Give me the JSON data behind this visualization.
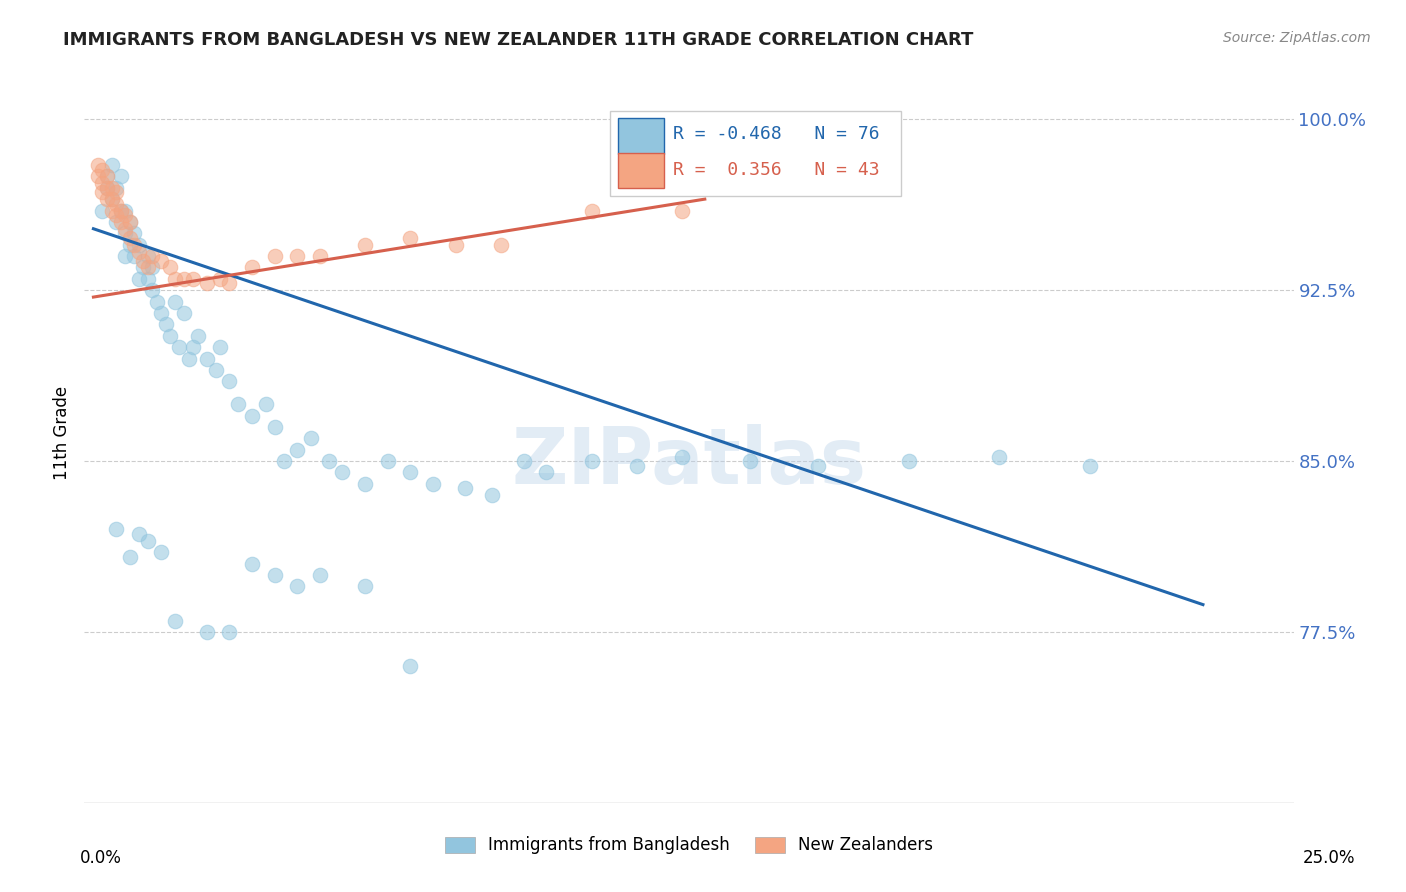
{
  "title": "IMMIGRANTS FROM BANGLADESH VS NEW ZEALANDER 11TH GRADE CORRELATION CHART",
  "source": "Source: ZipAtlas.com",
  "ylabel": "11th Grade",
  "y_min": 0.7,
  "y_max": 1.025,
  "x_min": -0.002,
  "x_max": 0.265,
  "legend_R_blue": "-0.468",
  "legend_N_blue": "76",
  "legend_R_pink": "0.356",
  "legend_N_pink": "43",
  "blue_color": "#92c5de",
  "pink_color": "#f4a582",
  "line_blue": "#2166ac",
  "line_pink": "#d6604d",
  "watermark": "ZIPatlas",
  "blue_scatter_x": [
    0.002,
    0.003,
    0.003,
    0.004,
    0.004,
    0.005,
    0.005,
    0.006,
    0.006,
    0.007,
    0.007,
    0.007,
    0.008,
    0.008,
    0.009,
    0.009,
    0.01,
    0.01,
    0.011,
    0.012,
    0.012,
    0.013,
    0.013,
    0.014,
    0.015,
    0.016,
    0.017,
    0.018,
    0.019,
    0.02,
    0.021,
    0.022,
    0.023,
    0.025,
    0.027,
    0.028,
    0.03,
    0.032,
    0.035,
    0.038,
    0.04,
    0.042,
    0.045,
    0.048,
    0.052,
    0.055,
    0.06,
    0.065,
    0.07,
    0.075,
    0.082,
    0.088,
    0.095,
    0.1,
    0.11,
    0.12,
    0.13,
    0.145,
    0.16,
    0.18,
    0.2,
    0.22,
    0.005,
    0.008,
    0.01,
    0.012,
    0.015,
    0.018,
    0.025,
    0.03,
    0.035,
    0.04,
    0.045,
    0.05,
    0.06,
    0.07
  ],
  "blue_scatter_y": [
    0.96,
    0.97,
    0.975,
    0.965,
    0.98,
    0.955,
    0.97,
    0.96,
    0.975,
    0.95,
    0.96,
    0.94,
    0.945,
    0.955,
    0.94,
    0.95,
    0.93,
    0.945,
    0.935,
    0.93,
    0.94,
    0.925,
    0.935,
    0.92,
    0.915,
    0.91,
    0.905,
    0.92,
    0.9,
    0.915,
    0.895,
    0.9,
    0.905,
    0.895,
    0.89,
    0.9,
    0.885,
    0.875,
    0.87,
    0.875,
    0.865,
    0.85,
    0.855,
    0.86,
    0.85,
    0.845,
    0.84,
    0.85,
    0.845,
    0.84,
    0.838,
    0.835,
    0.85,
    0.845,
    0.85,
    0.848,
    0.852,
    0.85,
    0.848,
    0.85,
    0.852,
    0.848,
    0.82,
    0.808,
    0.818,
    0.815,
    0.81,
    0.78,
    0.775,
    0.775,
    0.805,
    0.8,
    0.795,
    0.8,
    0.795,
    0.76
  ],
  "pink_scatter_x": [
    0.001,
    0.001,
    0.002,
    0.002,
    0.002,
    0.003,
    0.003,
    0.003,
    0.004,
    0.004,
    0.004,
    0.005,
    0.005,
    0.005,
    0.006,
    0.006,
    0.007,
    0.007,
    0.008,
    0.008,
    0.009,
    0.01,
    0.011,
    0.012,
    0.013,
    0.015,
    0.017,
    0.018,
    0.02,
    0.022,
    0.025,
    0.028,
    0.03,
    0.035,
    0.04,
    0.045,
    0.05,
    0.06,
    0.07,
    0.08,
    0.09,
    0.11,
    0.13
  ],
  "pink_scatter_y": [
    0.975,
    0.98,
    0.968,
    0.972,
    0.978,
    0.965,
    0.97,
    0.975,
    0.96,
    0.965,
    0.97,
    0.958,
    0.963,
    0.968,
    0.955,
    0.96,
    0.952,
    0.958,
    0.948,
    0.955,
    0.945,
    0.942,
    0.938,
    0.935,
    0.94,
    0.938,
    0.935,
    0.93,
    0.93,
    0.93,
    0.928,
    0.93,
    0.928,
    0.935,
    0.94,
    0.94,
    0.94,
    0.945,
    0.948,
    0.945,
    0.945,
    0.96,
    0.96
  ],
  "blue_line_x": [
    0.0,
    0.245
  ],
  "blue_line_y": [
    0.952,
    0.787
  ],
  "pink_line_x": [
    0.0,
    0.135
  ],
  "pink_line_y": [
    0.922,
    0.965
  ],
  "y_tick_vals": [
    0.775,
    0.85,
    0.925,
    1.0
  ],
  "y_tick_labs": [
    "77.5%",
    "85.0%",
    "92.5%",
    "100.0%"
  ]
}
